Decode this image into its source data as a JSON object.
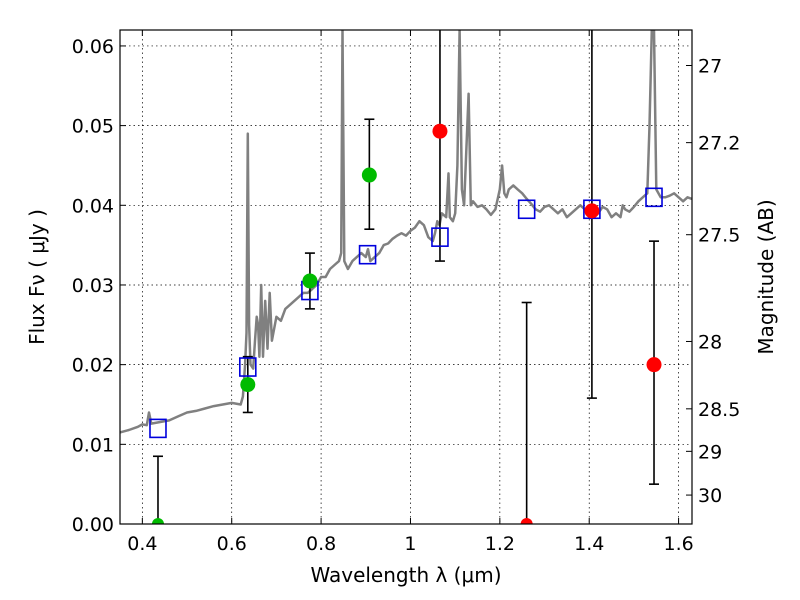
{
  "chart_data": {
    "type": "scatter",
    "title": "",
    "xlabel": "Wavelength  λ (μm)",
    "ylabel": "Flux  Fν ( μJy )",
    "ylabel_right": "Magnitude (AB)",
    "xlim": [
      0.35,
      1.63
    ],
    "ylim": [
      0.0,
      0.062
    ],
    "grid": true,
    "x_ticks": [
      {
        "value": 0.4,
        "label": "0.4"
      },
      {
        "value": 0.6,
        "label": "0.6"
      },
      {
        "value": 0.8,
        "label": "0.8"
      },
      {
        "value": 1.0,
        "label": "1"
      },
      {
        "value": 1.2,
        "label": "1.2"
      },
      {
        "value": 1.4,
        "label": "1.4"
      },
      {
        "value": 1.6,
        "label": "1.6"
      }
    ],
    "y_ticks": [
      {
        "value": 0.0,
        "label": "0.00"
      },
      {
        "value": 0.01,
        "label": "0.01"
      },
      {
        "value": 0.02,
        "label": "0.02"
      },
      {
        "value": 0.03,
        "label": "0.03"
      },
      {
        "value": 0.04,
        "label": "0.04"
      },
      {
        "value": 0.05,
        "label": "0.05"
      },
      {
        "value": 0.06,
        "label": "0.06"
      }
    ],
    "right_ticks": [
      {
        "label": "27"
      },
      {
        "label": "27.2"
      },
      {
        "label": "27.5"
      },
      {
        "label": "28"
      },
      {
        "label": "28.5"
      },
      {
        "label": "29"
      },
      {
        "label": "30"
      }
    ],
    "colors": {
      "spectrum": "#808080",
      "model": "#0000dd",
      "detected": "#00bb00",
      "upper_limit": "#ff0000",
      "errorbar": "#000000"
    },
    "spectrum": [
      [
        0.35,
        0.0115
      ],
      [
        0.37,
        0.0118
      ],
      [
        0.39,
        0.0122
      ],
      [
        0.4,
        0.0125
      ],
      [
        0.41,
        0.0124
      ],
      [
        0.415,
        0.014
      ],
      [
        0.42,
        0.0126
      ],
      [
        0.44,
        0.0128
      ],
      [
        0.46,
        0.013
      ],
      [
        0.48,
        0.0135
      ],
      [
        0.5,
        0.014
      ],
      [
        0.52,
        0.0142
      ],
      [
        0.54,
        0.0145
      ],
      [
        0.56,
        0.0148
      ],
      [
        0.58,
        0.015
      ],
      [
        0.6,
        0.0152
      ],
      [
        0.62,
        0.015
      ],
      [
        0.625,
        0.016
      ],
      [
        0.63,
        0.02
      ],
      [
        0.633,
        0.024
      ],
      [
        0.636,
        0.049
      ],
      [
        0.639,
        0.025
      ],
      [
        0.642,
        0.02
      ],
      [
        0.648,
        0.0195
      ],
      [
        0.652,
        0.023
      ],
      [
        0.656,
        0.026
      ],
      [
        0.659,
        0.025
      ],
      [
        0.662,
        0.021
      ],
      [
        0.666,
        0.03
      ],
      [
        0.67,
        0.021
      ],
      [
        0.675,
        0.028
      ],
      [
        0.68,
        0.022
      ],
      [
        0.685,
        0.029
      ],
      [
        0.69,
        0.023
      ],
      [
        0.7,
        0.026
      ],
      [
        0.71,
        0.0255
      ],
      [
        0.72,
        0.027
      ],
      [
        0.73,
        0.0275
      ],
      [
        0.74,
        0.028
      ],
      [
        0.75,
        0.0285
      ],
      [
        0.76,
        0.029
      ],
      [
        0.77,
        0.029
      ],
      [
        0.78,
        0.0295
      ],
      [
        0.79,
        0.03
      ],
      [
        0.8,
        0.031
      ],
      [
        0.81,
        0.031
      ],
      [
        0.82,
        0.032
      ],
      [
        0.83,
        0.0325
      ],
      [
        0.84,
        0.033
      ],
      [
        0.845,
        0.034
      ],
      [
        0.848,
        0.062
      ],
      [
        0.852,
        0.033
      ],
      [
        0.86,
        0.032
      ],
      [
        0.87,
        0.033
      ],
      [
        0.88,
        0.0335
      ],
      [
        0.89,
        0.034
      ],
      [
        0.9,
        0.0335
      ],
      [
        0.905,
        0.0345
      ],
      [
        0.91,
        0.033
      ],
      [
        0.92,
        0.0335
      ],
      [
        0.93,
        0.034
      ],
      [
        0.94,
        0.035
      ],
      [
        0.95,
        0.0352
      ],
      [
        0.96,
        0.0358
      ],
      [
        0.97,
        0.0362
      ],
      [
        0.98,
        0.0365
      ],
      [
        0.99,
        0.0362
      ],
      [
        1.0,
        0.0368
      ],
      [
        1.01,
        0.0372
      ],
      [
        1.02,
        0.038
      ],
      [
        1.03,
        0.0375
      ],
      [
        1.04,
        0.036
      ],
      [
        1.05,
        0.0355
      ],
      [
        1.055,
        0.0365
      ],
      [
        1.06,
        0.038
      ],
      [
        1.065,
        0.0375
      ],
      [
        1.07,
        0.039
      ],
      [
        1.08,
        0.0385
      ],
      [
        1.085,
        0.044
      ],
      [
        1.088,
        0.0385
      ],
      [
        1.095,
        0.038
      ],
      [
        1.1,
        0.039
      ],
      [
        1.105,
        0.045
      ],
      [
        1.11,
        0.062
      ],
      [
        1.115,
        0.042
      ],
      [
        1.12,
        0.04
      ],
      [
        1.13,
        0.054
      ],
      [
        1.135,
        0.04
      ],
      [
        1.14,
        0.0405
      ],
      [
        1.15,
        0.0398
      ],
      [
        1.16,
        0.04
      ],
      [
        1.17,
        0.0395
      ],
      [
        1.18,
        0.0388
      ],
      [
        1.19,
        0.0395
      ],
      [
        1.2,
        0.042
      ],
      [
        1.205,
        0.045
      ],
      [
        1.21,
        0.0415
      ],
      [
        1.215,
        0.041
      ],
      [
        1.22,
        0.042
      ],
      [
        1.23,
        0.0425
      ],
      [
        1.24,
        0.042
      ],
      [
        1.25,
        0.0415
      ],
      [
        1.26,
        0.0408
      ],
      [
        1.27,
        0.0402
      ],
      [
        1.28,
        0.0395
      ],
      [
        1.29,
        0.0392
      ],
      [
        1.3,
        0.0398
      ],
      [
        1.31,
        0.04
      ],
      [
        1.32,
        0.0395
      ],
      [
        1.33,
        0.039
      ],
      [
        1.34,
        0.0395
      ],
      [
        1.35,
        0.0385
      ],
      [
        1.36,
        0.039
      ],
      [
        1.37,
        0.0395
      ],
      [
        1.38,
        0.04
      ],
      [
        1.39,
        0.0395
      ],
      [
        1.4,
        0.039
      ],
      [
        1.41,
        0.0385
      ],
      [
        1.42,
        0.039
      ],
      [
        1.43,
        0.0398
      ],
      [
        1.44,
        0.0395
      ],
      [
        1.45,
        0.0385
      ],
      [
        1.46,
        0.039
      ],
      [
        1.47,
        0.0385
      ],
      [
        1.475,
        0.04
      ],
      [
        1.48,
        0.0395
      ],
      [
        1.49,
        0.0392
      ],
      [
        1.5,
        0.0398
      ],
      [
        1.51,
        0.0405
      ],
      [
        1.52,
        0.041
      ],
      [
        1.53,
        0.0415
      ],
      [
        1.535,
        0.05
      ],
      [
        1.54,
        0.062
      ],
      [
        1.545,
        0.062
      ],
      [
        1.55,
        0.042
      ],
      [
        1.56,
        0.041
      ],
      [
        1.57,
        0.041
      ],
      [
        1.58,
        0.0412
      ],
      [
        1.59,
        0.0415
      ],
      [
        1.6,
        0.041
      ],
      [
        1.61,
        0.0405
      ],
      [
        1.62,
        0.041
      ],
      [
        1.63,
        0.0408
      ]
    ],
    "model_points": [
      {
        "x": 0.435,
        "y": 0.012
      },
      {
        "x": 0.636,
        "y": 0.0197
      },
      {
        "x": 0.775,
        "y": 0.0293
      },
      {
        "x": 0.904,
        "y": 0.0338
      },
      {
        "x": 1.066,
        "y": 0.036
      },
      {
        "x": 1.26,
        "y": 0.0395
      },
      {
        "x": 1.406,
        "y": 0.0395
      },
      {
        "x": 1.545,
        "y": 0.041
      }
    ],
    "detections": [
      {
        "x": 0.636,
        "y": 0.0175,
        "yerr": [
          0.014,
          0.021
        ]
      },
      {
        "x": 0.775,
        "y": 0.0305,
        "yerr": [
          0.027,
          0.034
        ]
      },
      {
        "x": 0.908,
        "y": 0.0438,
        "yerr": [
          0.037,
          0.0508
        ]
      }
    ],
    "upper_limits": [
      {
        "x": 1.066,
        "y": 0.0493,
        "yerr": [
          0.033,
          0.062
        ]
      },
      {
        "x": 1.406,
        "y": 0.0393,
        "yerr": [
          0.0158,
          0.062
        ]
      },
      {
        "x": 1.545,
        "y": 0.02,
        "yerr": [
          0.005,
          0.0355
        ]
      }
    ],
    "non_detections": [
      {
        "x": 0.435,
        "y": 0.0,
        "color": "green",
        "yerr": [
          0.0,
          0.0085
        ]
      },
      {
        "x": 1.26,
        "y": 0.0,
        "color": "red",
        "yerr": [
          0.0,
          0.0278
        ]
      }
    ]
  }
}
